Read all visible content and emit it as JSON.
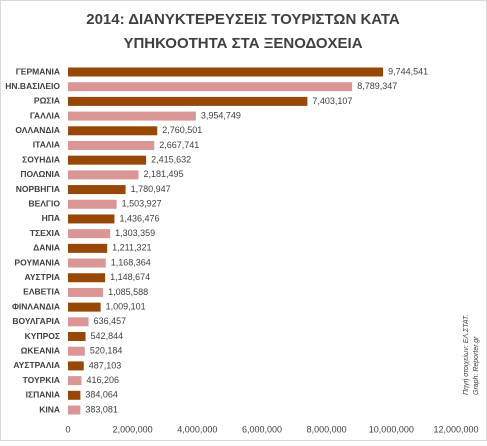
{
  "chart_data": {
    "type": "bar",
    "orientation": "horizontal",
    "title": [
      "2014: ΔΙΑΝΥΚΤΕΡΕΥΣΕΙΣ ΤΟΥΡΙΣΤΩΝ  ΚΑΤΑ",
      "ΥΠΗΚΟΟΤΗΤΑ ΣΤΑ ΞΕΝΟΔΟΧΕΙΑ"
    ],
    "categories": [
      "ΓΕΡΜΑΝΙΑ",
      "ΗΝ.ΒΑΣΙΛΕΙΟ",
      "ΡΩΣΙΑ",
      "ΓΑΛΛΙΑ",
      "ΟΛΛΑΝΔΙΑ",
      "ΙΤΑΛΙΑ",
      "ΣΟΥΗΔΙΑ",
      "ΠΟΛΩΝΙΑ",
      "ΝΟΡΒΗΓΙΑ",
      "ΒΕΛΓΙΟ",
      "ΗΠΑ",
      "ΤΣΕΧΙΑ",
      "ΔΑΝΙΑ",
      "ΡΟΥΜΑΝΙΑ",
      "ΑΥΣΤΡΙΑ",
      "ΕΛΒΕΤΙΑ",
      "ΦΙΝΛΑΝΔΙΑ",
      "ΒΟΥΛΓΑΡΙΑ",
      "ΚΥΠΡΟΣ",
      "ΩΚΕΑΝΙΑ",
      "ΑΥΣΤΡΑΛΙΑ",
      "ΤΟΥΡΚΙΑ",
      "ΙΣΠΑΝΙΑ",
      "ΚΙΝΑ"
    ],
    "values": [
      9744541,
      8789347,
      7403107,
      3954749,
      2760501,
      2667741,
      2415632,
      2181495,
      1780947,
      1503927,
      1436476,
      1303359,
      1211321,
      1168364,
      1148674,
      1085588,
      1009101,
      636457,
      542844,
      520184,
      487103,
      416206,
      384064,
      383081
    ],
    "value_labels": [
      "9,744,541",
      "8,789,347",
      "7,403,107",
      "3,954,749",
      "2,760,501",
      "2,667,741",
      "2,415,632",
      "2,181,495",
      "1,780,947",
      "1,503,927",
      "1,436,476",
      "1,303,359",
      "1,211,321",
      "1,168,364",
      "1,148,674",
      "1,085,588",
      "1,009,101",
      "636,457",
      "542,844",
      "520,184",
      "487,103",
      "416,206",
      "384,064",
      "383,081"
    ],
    "colors": [
      "#974706",
      "#d99694",
      "#974706",
      "#d99694",
      "#974706",
      "#d99694",
      "#974706",
      "#d99694",
      "#974706",
      "#d99694",
      "#974706",
      "#d99694",
      "#974706",
      "#d99694",
      "#974706",
      "#d99694",
      "#974706",
      "#d99694",
      "#974706",
      "#d99694",
      "#974706",
      "#d99694",
      "#974706",
      "#d99694"
    ],
    "xlim": [
      0,
      12000000
    ],
    "xticks": [
      0,
      {
        "value": 2000000,
        "label": "2,000,000"
      },
      {
        "value": 4000000,
        "label": "4,000,000"
      },
      {
        "value": 6000000,
        "label": "6,000,000"
      },
      {
        "value": 8000000,
        "label": "8,000,000"
      },
      {
        "value": 10000000,
        "label": "10,000,000"
      },
      {
        "value": 12000000,
        "label": "12,000,000"
      }
    ],
    "annotations": [
      "Πηγή στοιχείων: ΕΛ.ΣΤΑΤ.",
      "Graph: Reporter.gr"
    ]
  }
}
